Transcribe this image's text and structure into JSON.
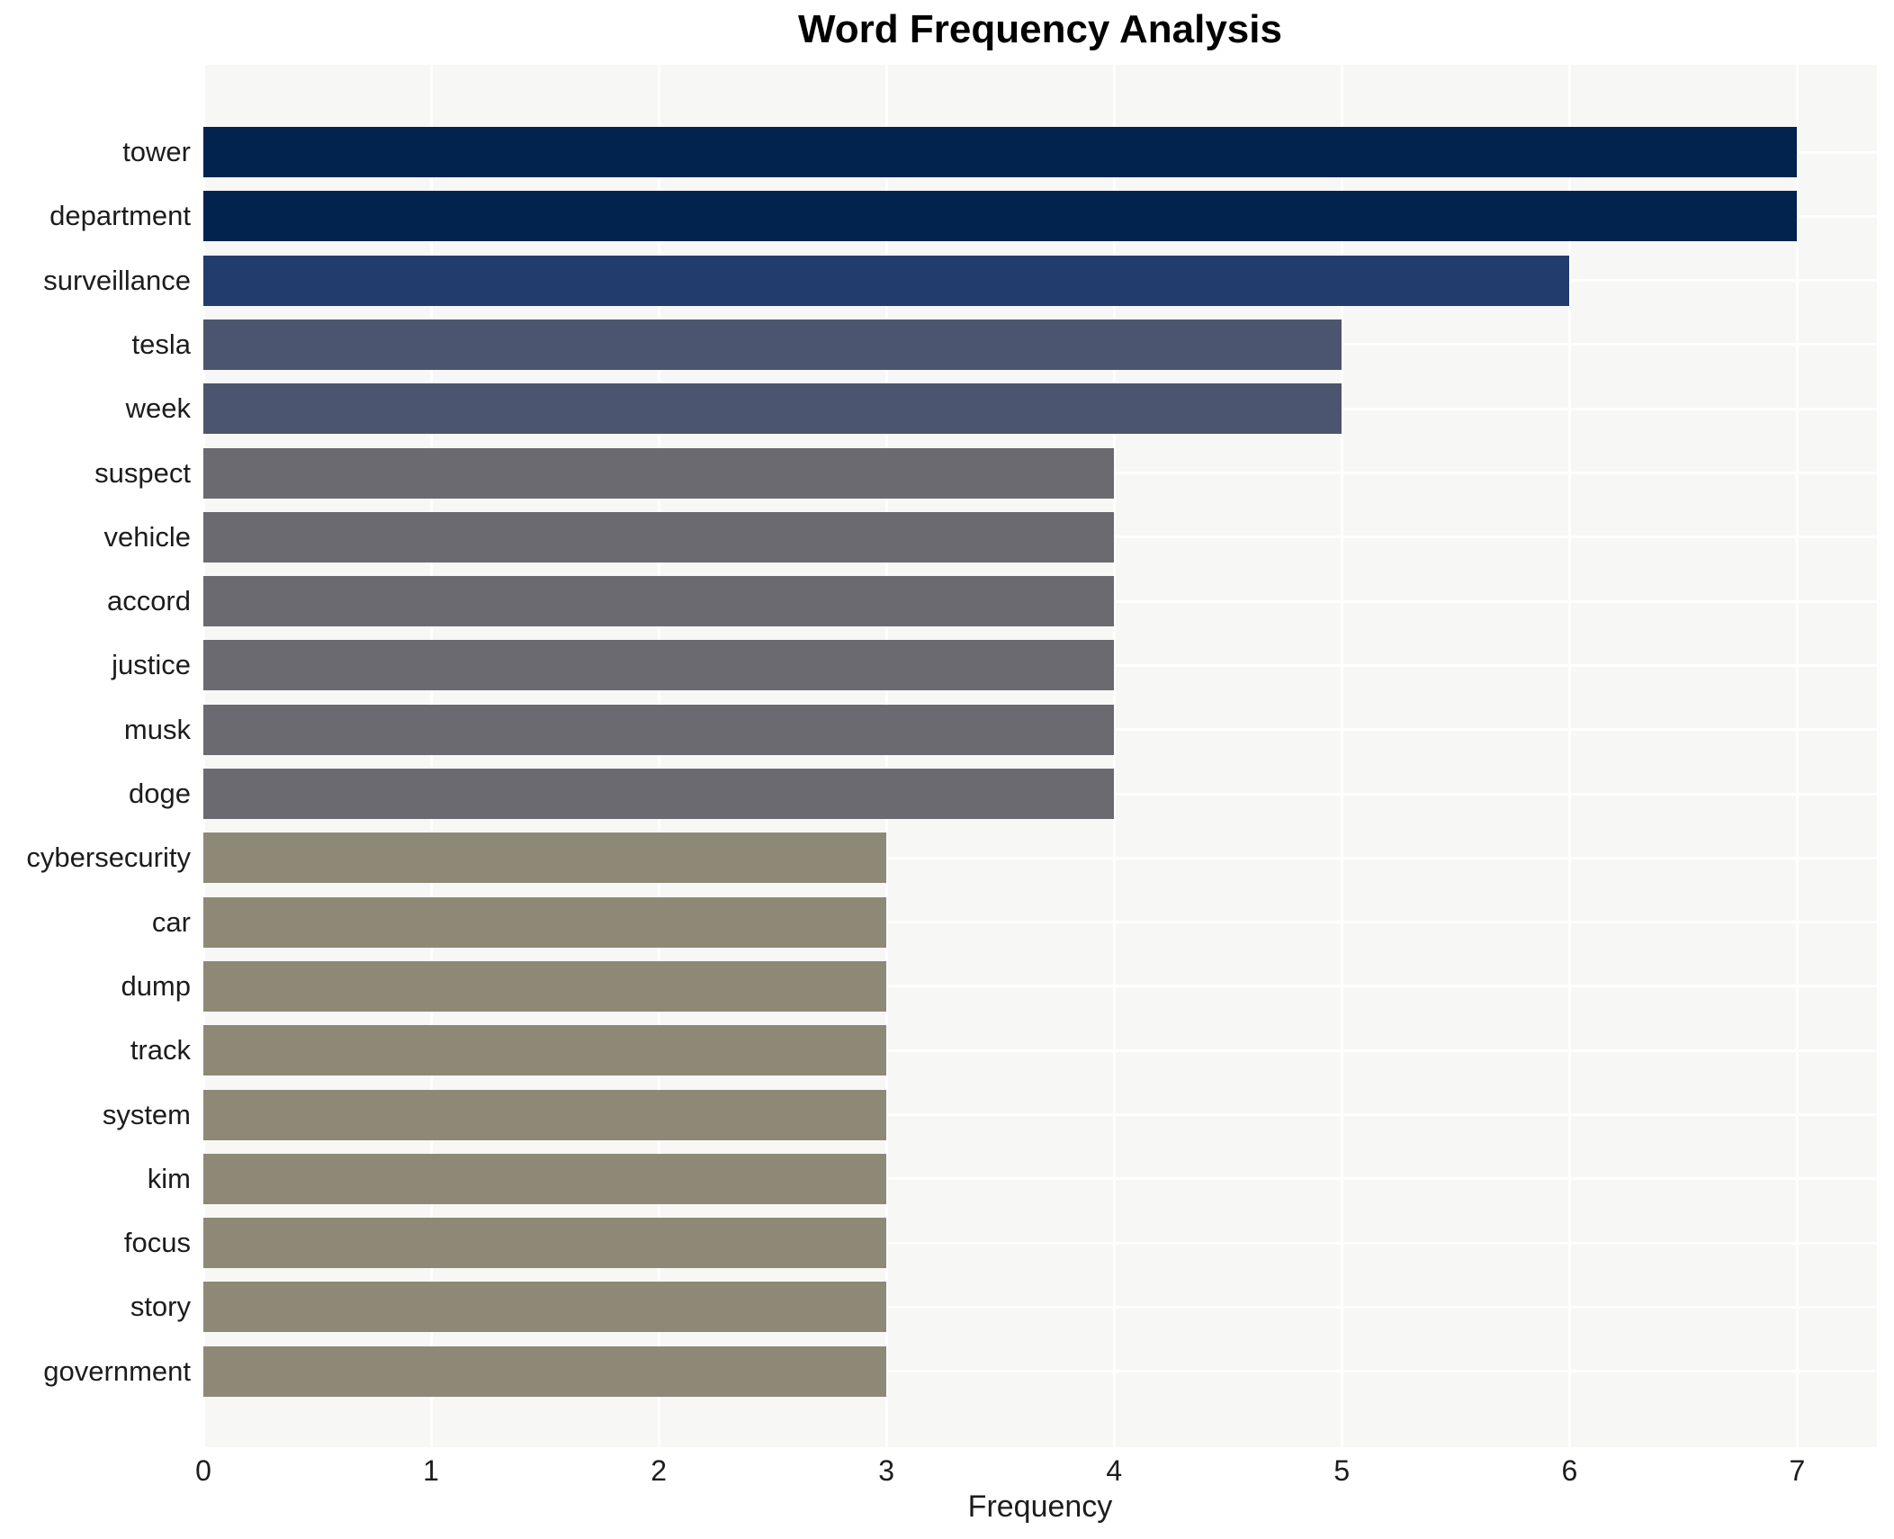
{
  "title": "Word Frequency Analysis",
  "chart_data": {
    "type": "bar",
    "orientation": "horizontal",
    "title": "Word Frequency Analysis",
    "xlabel": "Frequency",
    "ylabel": "",
    "categories": [
      "tower",
      "department",
      "surveillance",
      "tesla",
      "week",
      "suspect",
      "vehicle",
      "accord",
      "justice",
      "musk",
      "doge",
      "cybersecurity",
      "car",
      "dump",
      "track",
      "system",
      "kim",
      "focus",
      "story",
      "government"
    ],
    "values": [
      7,
      7,
      6,
      5,
      5,
      4,
      4,
      4,
      4,
      4,
      4,
      3,
      3,
      3,
      3,
      3,
      3,
      3,
      3,
      3
    ],
    "bar_colors": [
      "#03234f",
      "#03234f",
      "#223d6d",
      "#4c556f",
      "#4c556f",
      "#6b6a70",
      "#6b6a70",
      "#6b6a70",
      "#6b6a70",
      "#6b6a70",
      "#6b6a70",
      "#8e8876",
      "#8e8876",
      "#8e8876",
      "#8e8876",
      "#8e8876",
      "#8e8876",
      "#8e8876",
      "#8e8876",
      "#8e8876"
    ],
    "xticks": [
      0,
      1,
      2,
      3,
      4,
      5,
      6,
      7
    ],
    "xlim": [
      0,
      7.35
    ],
    "grid": true,
    "legend": "none",
    "plot_background": "#f7f7f6",
    "grid_color": "#ffffff",
    "text_color": "#1c1c1c",
    "title_color": "#000000"
  }
}
